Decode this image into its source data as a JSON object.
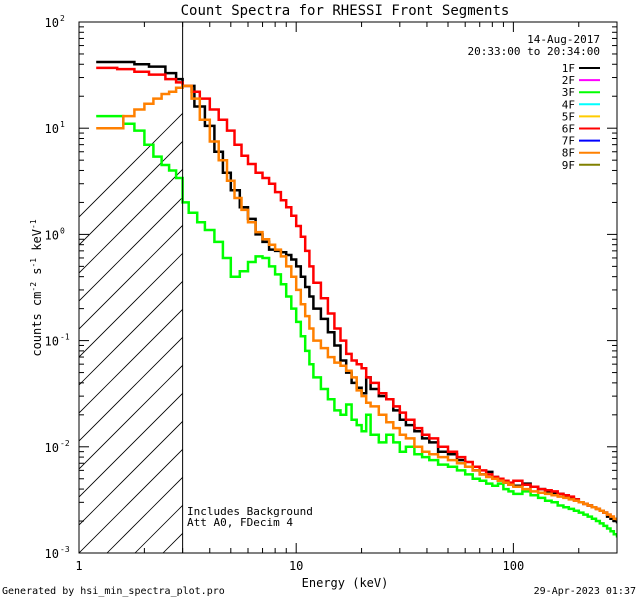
{
  "chart_data": {
    "type": "line",
    "title": "Count Spectra for RHESSI Front Segments",
    "xlabel": "Energy (keV)",
    "ylabel_parts": [
      "counts cm",
      "-2",
      " s",
      "-1",
      " keV",
      "-1"
    ],
    "x_scale": "log",
    "y_scale": "log",
    "xlim": [
      1,
      300
    ],
    "ylim": [
      0.001,
      100
    ],
    "x_tick_labels": [
      {
        "value": 1,
        "label": "1"
      },
      {
        "value": 10,
        "label": "10"
      },
      {
        "value": 100,
        "label": "100"
      }
    ],
    "y_tick_labels": [
      {
        "value": 0.001,
        "base": "10",
        "exp": "-3"
      },
      {
        "value": 0.01,
        "base": "10",
        "exp": "-2"
      },
      {
        "value": 0.1,
        "base": "10",
        "exp": "-1"
      },
      {
        "value": 1,
        "base": "10",
        "exp": "0"
      },
      {
        "value": 10,
        "base": "10",
        "exp": "1"
      },
      {
        "value": 100,
        "base": "10",
        "exp": "2"
      }
    ],
    "attenuator_edge_kev": 3,
    "date": "14-Aug-2017",
    "time_range": "20:33:00 to 20:34:00",
    "notes": [
      "Includes Background",
      "Att A0, FDecim 4"
    ],
    "footer_left": "Generated by hsi_min_spectra_plot.pro",
    "footer_right": "29-Apr-2023 01:37",
    "legend": [
      {
        "name": "1F",
        "color": "#000000"
      },
      {
        "name": "2F",
        "color": "#ff00ff"
      },
      {
        "name": "3F",
        "color": "#00ff00"
      },
      {
        "name": "4F",
        "color": "#00ffff"
      },
      {
        "name": "5F",
        "color": "#ffcc00"
      },
      {
        "name": "6F",
        "color": "#ff0000"
      },
      {
        "name": "7F",
        "color": "#0000ff"
      },
      {
        "name": "8F",
        "color": "#ff8000"
      },
      {
        "name": "9F",
        "color": "#808000"
      }
    ],
    "series": [
      {
        "name": "1F",
        "color": "#000000",
        "x": [
          1.2,
          1.5,
          1.8,
          2.1,
          2.5,
          2.8,
          3.0,
          3.4,
          3.8,
          4.2,
          4.6,
          5.0,
          5.5,
          6.0,
          6.5,
          7.0,
          7.5,
          8.0,
          8.5,
          9.0,
          9.5,
          10.0,
          10.5,
          11.0,
          11.5,
          12.0,
          13.0,
          14.0,
          15.0,
          16.0,
          17.0,
          18.0,
          19.0,
          20.0,
          21.0,
          22.0,
          24.0,
          26.0,
          28.0,
          30.0,
          32.0,
          35.0,
          38.0,
          41.0,
          45.0,
          50.0,
          55.0,
          60.0,
          65.0,
          70.0,
          75.0,
          80.0,
          85.0,
          90.0,
          95.0,
          100.0,
          110.0,
          120.0,
          130.0,
          140.0,
          150.0,
          160.0,
          170.0,
          180.0,
          190.0,
          200.0,
          210.0,
          220.0,
          230.0,
          240.0,
          250.0,
          260.0,
          270.0,
          280.0,
          290.0,
          300.0
        ],
        "y": [
          42,
          42,
          40,
          38,
          33,
          29,
          25,
          16,
          10.5,
          6,
          3.8,
          2.6,
          1.8,
          1.4,
          1.0,
          0.85,
          0.72,
          0.7,
          0.68,
          0.64,
          0.58,
          0.5,
          0.4,
          0.32,
          0.26,
          0.2,
          0.16,
          0.12,
          0.09,
          0.065,
          0.05,
          0.04,
          0.036,
          0.032,
          0.045,
          0.035,
          0.03,
          0.028,
          0.022,
          0.018,
          0.016,
          0.014,
          0.012,
          0.011,
          0.009,
          0.0085,
          0.0075,
          0.0065,
          0.006,
          0.0055,
          0.0058,
          0.0052,
          0.0048,
          0.0046,
          0.0044,
          0.0043,
          0.0045,
          0.0042,
          0.004,
          0.0038,
          0.0037,
          0.0036,
          0.0034,
          0.0033,
          0.0032,
          0.003,
          0.0029,
          0.0028,
          0.0027,
          0.0026,
          0.0025,
          0.0024,
          0.0022,
          0.0021,
          0.002,
          0.0019
        ]
      },
      {
        "name": "3F",
        "color": "#00ff00",
        "x": [
          1.2,
          1.4,
          1.6,
          1.8,
          2.0,
          2.2,
          2.4,
          2.6,
          2.8,
          3.0,
          3.2,
          3.5,
          3.8,
          4.2,
          4.6,
          5.0,
          5.5,
          6.0,
          6.5,
          7.0,
          7.5,
          8.0,
          8.5,
          9.0,
          9.5,
          10.0,
          10.5,
          11.0,
          11.5,
          12.0,
          13.0,
          14.0,
          15.0,
          16.0,
          17.0,
          18.0,
          19.0,
          20.0,
          21.0,
          22.0,
          24.0,
          26.0,
          28.0,
          30.0,
          32.0,
          35.0,
          38.0,
          41.0,
          45.0,
          50.0,
          55.0,
          60.0,
          65.0,
          70.0,
          75.0,
          80.0,
          85.0,
          90.0,
          95.0,
          100.0,
          110.0,
          120.0,
          130.0,
          140.0,
          150.0,
          160.0,
          170.0,
          180.0,
          190.0,
          200.0,
          210.0,
          220.0,
          230.0,
          240.0,
          250.0,
          260.0,
          270.0,
          280.0,
          290.0,
          300.0
        ],
        "y": [
          13,
          13,
          11,
          9.5,
          7,
          5.4,
          4.5,
          4.0,
          3.4,
          2.0,
          1.6,
          1.3,
          1.1,
          0.85,
          0.6,
          0.4,
          0.45,
          0.55,
          0.62,
          0.6,
          0.5,
          0.42,
          0.34,
          0.26,
          0.2,
          0.15,
          0.11,
          0.08,
          0.06,
          0.045,
          0.035,
          0.028,
          0.022,
          0.02,
          0.025,
          0.018,
          0.016,
          0.014,
          0.02,
          0.013,
          0.011,
          0.013,
          0.011,
          0.009,
          0.01,
          0.0085,
          0.008,
          0.0075,
          0.0068,
          0.0065,
          0.006,
          0.0055,
          0.005,
          0.0048,
          0.0045,
          0.0043,
          0.0045,
          0.004,
          0.0038,
          0.0036,
          0.0038,
          0.0035,
          0.0033,
          0.0031,
          0.003,
          0.0028,
          0.0027,
          0.0026,
          0.0025,
          0.0024,
          0.0023,
          0.0022,
          0.0021,
          0.002,
          0.0019,
          0.0018,
          0.0017,
          0.0016,
          0.0015,
          0.0014
        ]
      },
      {
        "name": "6F",
        "color": "#ff0000",
        "x": [
          1.2,
          1.5,
          1.8,
          2.1,
          2.5,
          2.8,
          3.0,
          3.3,
          3.6,
          4.0,
          4.4,
          4.8,
          5.2,
          5.6,
          6.0,
          6.5,
          7.0,
          7.5,
          8.0,
          8.5,
          9.0,
          9.5,
          10.0,
          10.5,
          11.0,
          11.5,
          12.0,
          13.0,
          14.0,
          15.0,
          16.0,
          17.0,
          18.0,
          19.0,
          20.0,
          21.0,
          22.0,
          24.0,
          26.0,
          28.0,
          30.0,
          32.0,
          35.0,
          38.0,
          41.0,
          45.0,
          50.0,
          55.0,
          60.0,
          65.0,
          70.0,
          75.0,
          80.0,
          85.0,
          90.0,
          95.0,
          100.0,
          110.0,
          120.0,
          130.0,
          140.0,
          150.0,
          160.0,
          170.0,
          180.0,
          190.0,
          200.0,
          210.0,
          220.0,
          230.0,
          240.0,
          250.0,
          260.0,
          270.0,
          280.0,
          290.0,
          300.0
        ],
        "y": [
          37,
          36,
          34,
          32,
          29,
          27,
          25,
          22,
          19,
          15,
          12,
          9.5,
          7,
          5.5,
          4.6,
          3.8,
          3.4,
          3.0,
          2.5,
          2.1,
          1.8,
          1.5,
          1.2,
          0.95,
          0.7,
          0.5,
          0.35,
          0.25,
          0.18,
          0.13,
          0.1,
          0.075,
          0.065,
          0.06,
          0.055,
          0.045,
          0.04,
          0.032,
          0.028,
          0.024,
          0.021,
          0.018,
          0.015,
          0.013,
          0.012,
          0.01,
          0.009,
          0.008,
          0.0072,
          0.0065,
          0.006,
          0.0055,
          0.0052,
          0.005,
          0.0048,
          0.0046,
          0.0048,
          0.0044,
          0.0042,
          0.004,
          0.0039,
          0.0038,
          0.0036,
          0.0035,
          0.0034,
          0.0032,
          0.003,
          0.0029,
          0.0028,
          0.0027,
          0.0026,
          0.0025,
          0.0024,
          0.0023,
          0.0022,
          0.0021,
          0.002
        ]
      },
      {
        "name": "8F",
        "color": "#ff8000",
        "x": [
          1.2,
          1.4,
          1.6,
          1.8,
          2.0,
          2.2,
          2.4,
          2.6,
          2.8,
          3.0,
          3.3,
          3.6,
          4.0,
          4.4,
          4.8,
          5.2,
          5.6,
          6.0,
          6.5,
          7.0,
          7.5,
          8.0,
          8.5,
          9.0,
          9.5,
          10.0,
          10.5,
          11.0,
          11.5,
          12.0,
          13.0,
          14.0,
          15.0,
          16.0,
          17.0,
          18.0,
          19.0,
          20.0,
          21.0,
          22.0,
          24.0,
          26.0,
          28.0,
          30.0,
          32.0,
          35.0,
          38.0,
          41.0,
          45.0,
          50.0,
          55.0,
          60.0,
          65.0,
          70.0,
          75.0,
          80.0,
          85.0,
          90.0,
          95.0,
          100.0,
          110.0,
          120.0,
          130.0,
          140.0,
          150.0,
          160.0,
          170.0,
          180.0,
          190.0,
          200.0,
          210.0,
          220.0,
          230.0,
          240.0,
          250.0,
          260.0,
          270.0,
          280.0,
          290.0,
          300.0
        ],
        "y": [
          10,
          10,
          13,
          15,
          17,
          19,
          21,
          22,
          24,
          25,
          19,
          12,
          7.5,
          5,
          3.2,
          2.2,
          1.7,
          1.3,
          1.05,
          0.9,
          0.8,
          0.72,
          0.62,
          0.5,
          0.4,
          0.3,
          0.22,
          0.17,
          0.13,
          0.1,
          0.085,
          0.07,
          0.062,
          0.058,
          0.052,
          0.045,
          0.034,
          0.03,
          0.026,
          0.024,
          0.02,
          0.017,
          0.015,
          0.013,
          0.012,
          0.01,
          0.009,
          0.0085,
          0.008,
          0.0075,
          0.007,
          0.0065,
          0.006,
          0.0055,
          0.0052,
          0.005,
          0.0048,
          0.0046,
          0.0044,
          0.0042,
          0.004,
          0.0038,
          0.0037,
          0.0036,
          0.0035,
          0.0034,
          0.0033,
          0.0032,
          0.0031,
          0.003,
          0.0029,
          0.0028,
          0.0027,
          0.0026,
          0.0025,
          0.0024,
          0.0023,
          0.0022,
          0.0021,
          0.002
        ]
      }
    ]
  }
}
